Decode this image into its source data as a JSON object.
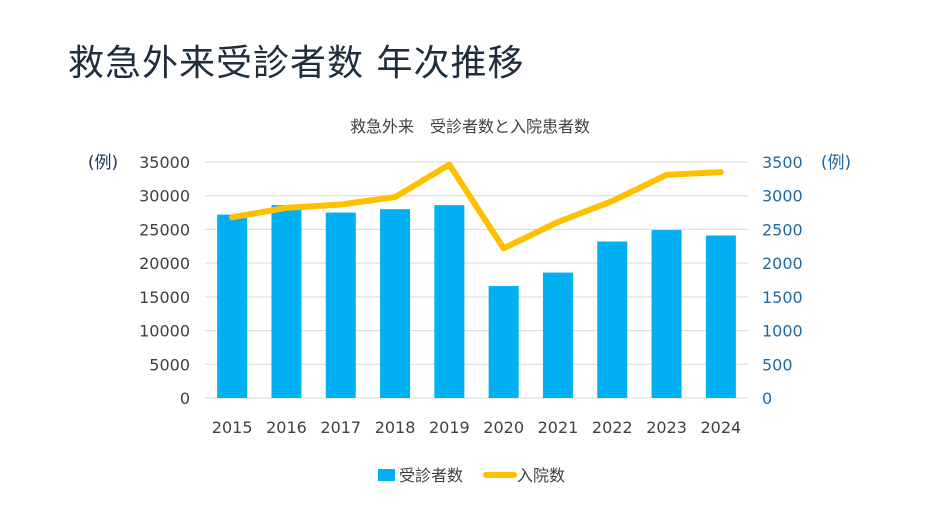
{
  "slide": {
    "title": "救急外来受診者数 年次推移"
  },
  "chart_data": {
    "type": "bar",
    "title": "救急外来　受診者数と入院患者数",
    "categories": [
      "2015",
      "2016",
      "2017",
      "2018",
      "2019",
      "2020",
      "2021",
      "2022",
      "2023",
      "2024"
    ],
    "series": [
      {
        "name": "受診者数",
        "chart": "bar",
        "axis": "left",
        "values": [
          27200,
          28600,
          27500,
          28000,
          28600,
          16600,
          18600,
          23200,
          24900,
          24100
        ]
      },
      {
        "name": "入院数",
        "chart": "line",
        "axis": "right",
        "values": [
          2680,
          2820,
          2870,
          2980,
          3460,
          2220,
          2610,
          2920,
          3310,
          3350
        ]
      }
    ],
    "left_axis": {
      "unit": "(例)",
      "ylim": [
        0,
        35000
      ],
      "ticks": [
        "0",
        "5000",
        "10000",
        "15000",
        "20000",
        "25000",
        "30000",
        "35000"
      ]
    },
    "right_axis": {
      "unit": "(例)",
      "ylim": [
        0,
        3500
      ],
      "ticks": [
        "0",
        "500",
        "1000",
        "1500",
        "2000",
        "2500",
        "3000",
        "3500"
      ]
    },
    "legend": {
      "placement": "bottom",
      "items": [
        "受診者数",
        "入院数"
      ]
    },
    "colors": {
      "bar": "#00b0f0",
      "line": "#ffc000",
      "grid": "#d9d9d9"
    }
  }
}
